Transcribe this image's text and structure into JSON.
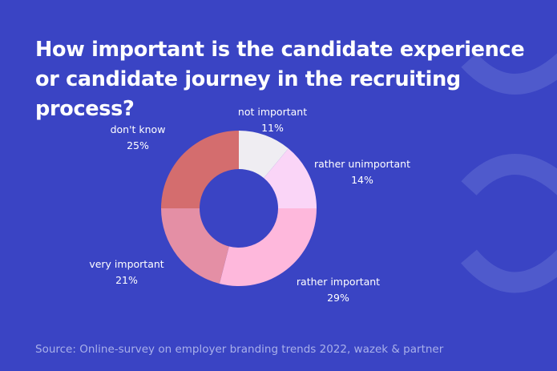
{
  "chart_data": {
    "type": "pie",
    "donut": true,
    "title": "How important is the candidate experience or candidate journey in the recruiting process?",
    "slices": [
      {
        "label": "not important",
        "value": 11,
        "display": "11%",
        "color": "#efedf2"
      },
      {
        "label": "rather unimportant",
        "value": 14,
        "display": "14%",
        "color": "#fad5f7"
      },
      {
        "label": "rather important",
        "value": 29,
        "display": "29%",
        "color": "#feb8dc"
      },
      {
        "label": "very important",
        "value": 21,
        "display": "21%",
        "color": "#e48fa5"
      },
      {
        "label": "don't know",
        "value": 25,
        "display": "25%",
        "color": "#d46d6e"
      }
    ],
    "start": "top",
    "direction": "clockwise",
    "source": "Source: Online-survey on employer branding trends 2022, wazek & partner"
  },
  "colors": {
    "background": "#3a44c4",
    "decoration": "#4f5acc",
    "source_text": "#a9b0ea"
  }
}
